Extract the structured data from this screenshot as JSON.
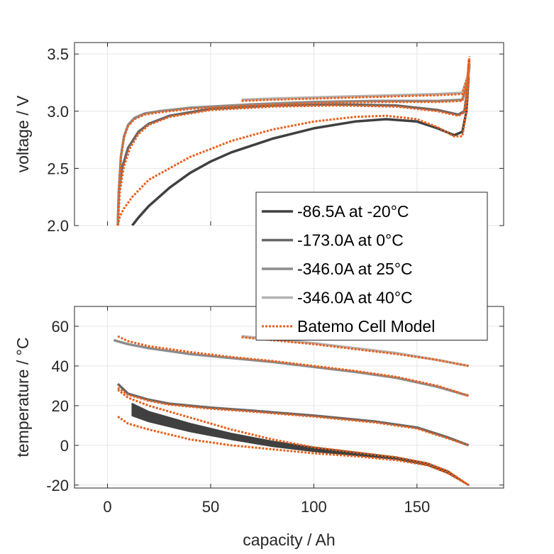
{
  "chart_data": [
    {
      "type": "line",
      "name": "voltage-plot",
      "xlabel": "",
      "ylabel": "voltage / V",
      "xlim": [
        -16,
        192
      ],
      "ylim": [
        2.0,
        3.6
      ],
      "xticks": [
        0,
        50,
        100,
        150
      ],
      "yticks": [
        2.0,
        2.5,
        3.0,
        3.5
      ],
      "ytick_labels": [
        "2.0",
        "2.5",
        "3.0",
        "3.5"
      ],
      "grid": true,
      "legend": {
        "placement": "bottom-right-overlapping",
        "entries": [
          {
            "label": "-86.5A at -20°C",
            "color": "#404040",
            "style": "solid"
          },
          {
            "label": "-173.0A at 0°C",
            "color": "#666666",
            "style": "solid"
          },
          {
            "label": "-346.0A at 25°C",
            "color": "#8c8c8c",
            "style": "solid"
          },
          {
            "label": "-346.0A at 40°C",
            "color": "#b3b3b3",
            "style": "solid"
          },
          {
            "label": "Batemo Cell Model",
            "color": "#e8601c",
            "style": "dotted"
          }
        ]
      },
      "series": [
        {
          "name": "-86.5A at -20°C",
          "color": "#404040",
          "style": "solid",
          "x": [
            12,
            15,
            20,
            30,
            40,
            50,
            60,
            80,
            100,
            120,
            135,
            150,
            160,
            168,
            172,
            174,
            175
          ],
          "y": [
            2.0,
            2.07,
            2.17,
            2.33,
            2.46,
            2.56,
            2.64,
            2.76,
            2.85,
            2.91,
            2.93,
            2.91,
            2.85,
            2.79,
            2.82,
            3.0,
            3.3
          ]
        },
        {
          "name": "-173.0A at 0°C",
          "color": "#666666",
          "style": "solid",
          "x": [
            5,
            5.5,
            7,
            10,
            15,
            20,
            30,
            50,
            80,
            110,
            140,
            160,
            170,
            173,
            174.5,
            175
          ],
          "y": [
            2.0,
            2.3,
            2.5,
            2.68,
            2.82,
            2.89,
            2.96,
            3.02,
            3.05,
            3.06,
            3.05,
            3.01,
            2.97,
            3.0,
            3.2,
            3.4
          ]
        },
        {
          "name": "-346.0A at 25°C",
          "color": "#8c8c8c",
          "style": "solid",
          "x": [
            5,
            5.5,
            6.5,
            8,
            10,
            13,
            18,
            25,
            40,
            70,
            100,
            130,
            160,
            172,
            174.5,
            175.5
          ],
          "y": [
            2.0,
            2.3,
            2.6,
            2.78,
            2.88,
            2.94,
            2.98,
            3.0,
            3.03,
            3.06,
            3.08,
            3.09,
            3.09,
            3.1,
            3.25,
            3.4
          ]
        },
        {
          "name": "-346.0A at 40°C",
          "color": "#b3b3b3",
          "style": "solid",
          "x": [
            65,
            80,
            100,
            120,
            140,
            160,
            172,
            174.5,
            175.5
          ],
          "y": [
            3.1,
            3.11,
            3.12,
            3.13,
            3.14,
            3.15,
            3.16,
            3.3,
            3.42
          ]
        },
        {
          "name": "Batemo Cell Model (-20°C)",
          "color": "#e8601c",
          "style": "dotted",
          "x": [
            5,
            6,
            8,
            12,
            20,
            30,
            40,
            60,
            80,
            100,
            120,
            135,
            150,
            160,
            168,
            172,
            174,
            175
          ],
          "y": [
            2.0,
            2.08,
            2.15,
            2.25,
            2.4,
            2.5,
            2.6,
            2.74,
            2.84,
            2.91,
            2.95,
            2.96,
            2.93,
            2.86,
            2.78,
            2.78,
            3.0,
            3.3
          ]
        },
        {
          "name": "Batemo Cell Model (0°C)",
          "color": "#e8601c",
          "style": "dotted",
          "x": [
            5,
            6,
            8,
            11,
            15,
            20,
            30,
            50,
            80,
            110,
            140,
            160,
            170,
            173,
            174.5,
            175
          ],
          "y": [
            2.0,
            2.3,
            2.52,
            2.68,
            2.8,
            2.88,
            2.95,
            3.01,
            3.04,
            3.05,
            3.04,
            3.0,
            2.96,
            2.99,
            3.2,
            3.45
          ]
        },
        {
          "name": "Batemo Cell Model (25°C)",
          "color": "#e8601c",
          "style": "dotted",
          "x": [
            5,
            5.5,
            6.5,
            8,
            10,
            13,
            18,
            25,
            40,
            70,
            100,
            130,
            160,
            172,
            174.5,
            175.5
          ],
          "y": [
            2.0,
            2.3,
            2.6,
            2.77,
            2.87,
            2.93,
            2.97,
            2.99,
            3.02,
            3.05,
            3.07,
            3.08,
            3.08,
            3.09,
            3.25,
            3.45
          ]
        },
        {
          "name": "Batemo Cell Model (40°C)",
          "color": "#e8601c",
          "style": "dotted",
          "x": [
            65,
            80,
            100,
            120,
            140,
            160,
            172,
            174.5,
            175.5
          ],
          "y": [
            3.09,
            3.1,
            3.11,
            3.12,
            3.13,
            3.14,
            3.15,
            3.3,
            3.48
          ]
        }
      ]
    },
    {
      "type": "line",
      "name": "temperature-plot",
      "xlabel": "capacity / Ah",
      "ylabel": "temperature / °C",
      "xlim": [
        -16,
        192
      ],
      "ylim": [
        -21.5,
        70
      ],
      "xticks": [
        0,
        50,
        100,
        150
      ],
      "xtick_labels": [
        "0",
        "50",
        "100",
        "150"
      ],
      "yticks": [
        -20,
        0,
        20,
        40,
        60
      ],
      "ytick_labels": [
        "-20",
        "0",
        "20",
        "40",
        "60"
      ],
      "grid": true,
      "series": [
        {
          "name": "-86.5A at -20°C",
          "color": "#404040",
          "style": "band",
          "x": [
            12,
            20,
            40,
            60,
            80,
            100,
            120,
            140,
            155,
            165,
            175
          ],
          "y_upper": [
            21,
            17,
            11,
            6,
            2,
            -1,
            -3.5,
            -6,
            -9,
            -13,
            -20
          ],
          "y_lower": [
            15,
            12,
            7,
            3,
            -0.5,
            -3,
            -5,
            -7,
            -10,
            -14,
            -20
          ]
        },
        {
          "name": "-173.0A at 0°C",
          "color": "#666666",
          "style": "solid",
          "x": [
            5,
            10,
            20,
            30,
            50,
            70,
            100,
            130,
            150,
            165,
            175
          ],
          "y": [
            31,
            26,
            23,
            21,
            19,
            17.5,
            15,
            12,
            9,
            4,
            0
          ]
        },
        {
          "name": "-346.0A at 25°C",
          "color": "#8c8c8c",
          "style": "solid",
          "x": [
            3,
            10,
            20,
            40,
            60,
            80,
            100,
            120,
            140,
            160,
            175
          ],
          "y": [
            53,
            51,
            49,
            46,
            44,
            42,
            39.5,
            37,
            34,
            29.5,
            25
          ]
        },
        {
          "name": "-346.0A at 40°C",
          "color": "#b3b3b3",
          "style": "solid",
          "x": [
            65,
            80,
            100,
            120,
            140,
            160,
            175
          ],
          "y": [
            55,
            53.5,
            51.5,
            49,
            46.5,
            43,
            40
          ]
        },
        {
          "name": "Batemo Cell Model (-20°C upper)",
          "color": "#e8601c",
          "style": "dotted",
          "x": [
            5,
            10,
            20,
            40,
            60,
            80,
            100,
            120,
            140,
            155,
            165,
            175
          ],
          "y": [
            28,
            24,
            20,
            14,
            8,
            3,
            -1,
            -3.5,
            -6,
            -9,
            -13,
            -20
          ]
        },
        {
          "name": "Batemo Cell Model (-20°C lower)",
          "color": "#e8601c",
          "style": "dotted",
          "x": [
            5,
            10,
            20,
            40,
            60,
            80,
            100,
            120,
            140,
            155,
            165,
            175
          ],
          "y": [
            14.5,
            11,
            8,
            3,
            0,
            -2,
            -4,
            -5.5,
            -7.5,
            -10,
            -14,
            -20
          ]
        },
        {
          "name": "Batemo Cell Model (0°C)",
          "color": "#e8601c",
          "style": "dotted",
          "x": [
            5,
            10,
            20,
            30,
            50,
            70,
            100,
            130,
            150,
            165,
            175
          ],
          "y": [
            29,
            25.5,
            22.5,
            20.5,
            18.5,
            17,
            14.5,
            11.5,
            8.5,
            3.5,
            0
          ]
        },
        {
          "name": "Batemo Cell Model (25°C)",
          "color": "#e8601c",
          "style": "dotted",
          "x": [
            5,
            10,
            20,
            40,
            60,
            80,
            100,
            120,
            140,
            160,
            175
          ],
          "y": [
            55,
            52.5,
            50,
            47,
            44.5,
            42.5,
            40,
            37.5,
            34.5,
            30,
            25
          ]
        },
        {
          "name": "Batemo Cell Model (40°C)",
          "color": "#e8601c",
          "style": "dotted",
          "x": [
            65,
            80,
            100,
            120,
            140,
            160,
            175
          ],
          "y": [
            54.5,
            53,
            51,
            48.5,
            46,
            43,
            40
          ]
        }
      ]
    }
  ]
}
